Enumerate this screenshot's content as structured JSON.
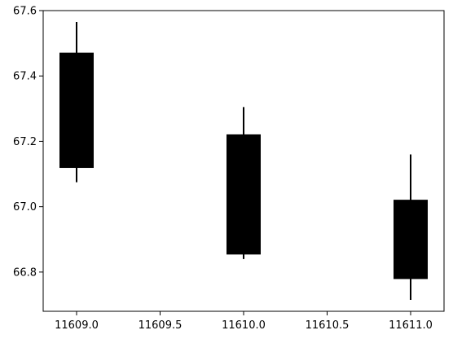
{
  "chart_data": {
    "type": "candlestick",
    "title": "",
    "xlabel": "",
    "ylabel": "",
    "xlim": [
      11608.8,
      11611.2
    ],
    "ylim": [
      66.68,
      67.6
    ],
    "x_ticks": [
      11609.0,
      11609.5,
      11610.0,
      11610.5,
      11611.0
    ],
    "x_tick_labels": [
      "11609.0",
      "11609.5",
      "11610.0",
      "11610.5",
      "11611.0"
    ],
    "y_ticks": [
      66.8,
      67.0,
      67.2,
      67.4,
      67.6
    ],
    "y_tick_labels": [
      "66.8",
      "67.0",
      "67.2",
      "67.4",
      "67.6"
    ],
    "candles": [
      {
        "x": 11609.0,
        "open": 67.47,
        "close": 67.12,
        "high": 67.565,
        "low": 67.075
      },
      {
        "x": 11610.0,
        "open": 67.22,
        "close": 66.855,
        "high": 67.305,
        "low": 66.84
      },
      {
        "x": 11611.0,
        "open": 67.02,
        "close": 66.78,
        "high": 67.16,
        "low": 66.715
      }
    ],
    "candle_width": 0.2,
    "grid": false,
    "colors": {
      "candle": "#000000",
      "axes": "#000000",
      "background": "#ffffff"
    }
  }
}
